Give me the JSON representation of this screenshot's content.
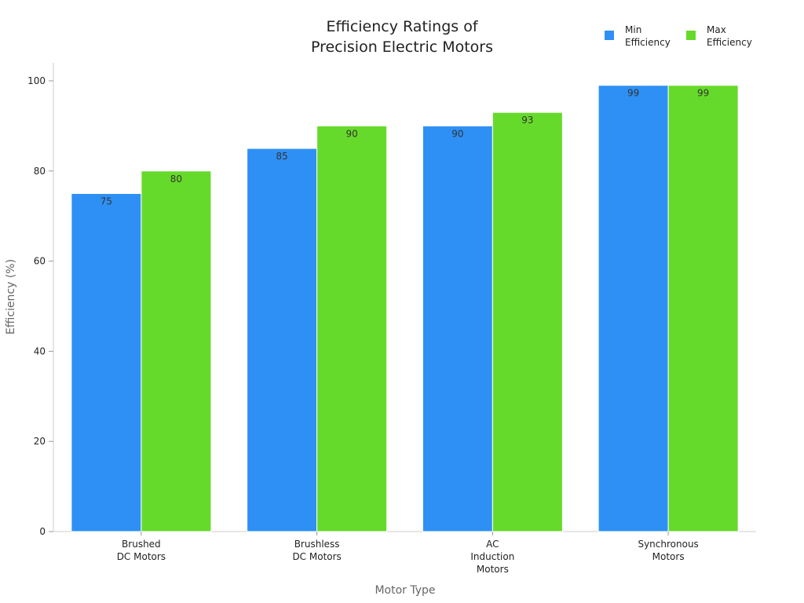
{
  "chart_data": {
    "type": "bar",
    "title": [
      "Efficiency Ratings of",
      "Precision Electric Motors"
    ],
    "xlabel": "Motor Type",
    "ylabel": "Efficiency (%)",
    "categories": [
      [
        "Brushed",
        "DC Motors"
      ],
      [
        "Brushless",
        "DC Motors"
      ],
      [
        "AC",
        "Induction",
        "Motors"
      ],
      [
        "Synchronous",
        "Motors"
      ]
    ],
    "series": [
      {
        "name": [
          "Min",
          "Efficiency"
        ],
        "color": "#2E90F5",
        "values": [
          75,
          85,
          90,
          99
        ]
      },
      {
        "name": [
          "Max",
          "Efficiency"
        ],
        "color": "#66DA2A",
        "values": [
          80,
          90,
          93,
          99
        ]
      }
    ],
    "ylim": [
      0,
      104
    ],
    "yticks": [
      0,
      20,
      40,
      60,
      80,
      100
    ],
    "grid": false,
    "legend_position": "top-right",
    "data_labels": true
  }
}
